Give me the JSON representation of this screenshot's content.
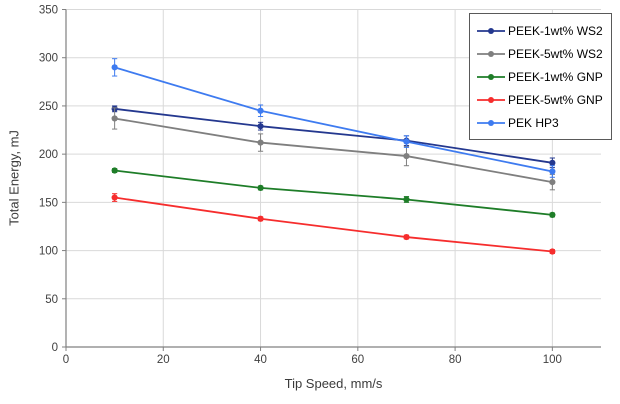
{
  "chart_data": {
    "type": "line",
    "title": "",
    "xlabel": "Tip Speed, mm/s",
    "ylabel": "Total Energy, mJ",
    "x": [
      10,
      40,
      70,
      100
    ],
    "xlim": [
      0,
      110
    ],
    "ylim": [
      0,
      350
    ],
    "x_ticks": [
      0,
      20,
      40,
      60,
      80,
      100
    ],
    "y_ticks": [
      0,
      50,
      100,
      150,
      200,
      250,
      300,
      350
    ],
    "grid": true,
    "legend_position": "top-right",
    "marker": "circle",
    "series": [
      {
        "name": "PEEK-1wt% WS2",
        "color": "#24388F",
        "values": [
          247,
          229,
          214,
          191
        ],
        "error_bars": [
          3,
          4,
          5,
          5
        ]
      },
      {
        "name": "PEEK-5wt% WS2",
        "color": "#7F7F7F",
        "values": [
          237,
          212,
          198,
          171
        ],
        "error_bars": [
          11,
          9,
          10,
          8
        ]
      },
      {
        "name": "PEEK-1wt% GNP",
        "color": "#1E7D28",
        "values": [
          183,
          165,
          153,
          137
        ],
        "error_bars": [
          2,
          2,
          3,
          2
        ]
      },
      {
        "name": "PEEK-5wt% GNP",
        "color": "#F62D2D",
        "values": [
          155,
          133,
          114,
          99
        ],
        "error_bars": [
          4,
          2,
          2,
          2
        ]
      },
      {
        "name": "PEK HP3",
        "color": "#3E7BF0",
        "values": [
          290,
          245,
          213,
          182
        ],
        "error_bars": [
          9,
          6,
          6,
          6
        ]
      }
    ],
    "style": {
      "background": "#FFFFFF",
      "gridline_color": "#D9D9D9",
      "axis_color": "#808080",
      "tick_label_color": "#404040",
      "axis_title_color": "#3B3B3B",
      "legend_border_color": "#595959"
    }
  }
}
